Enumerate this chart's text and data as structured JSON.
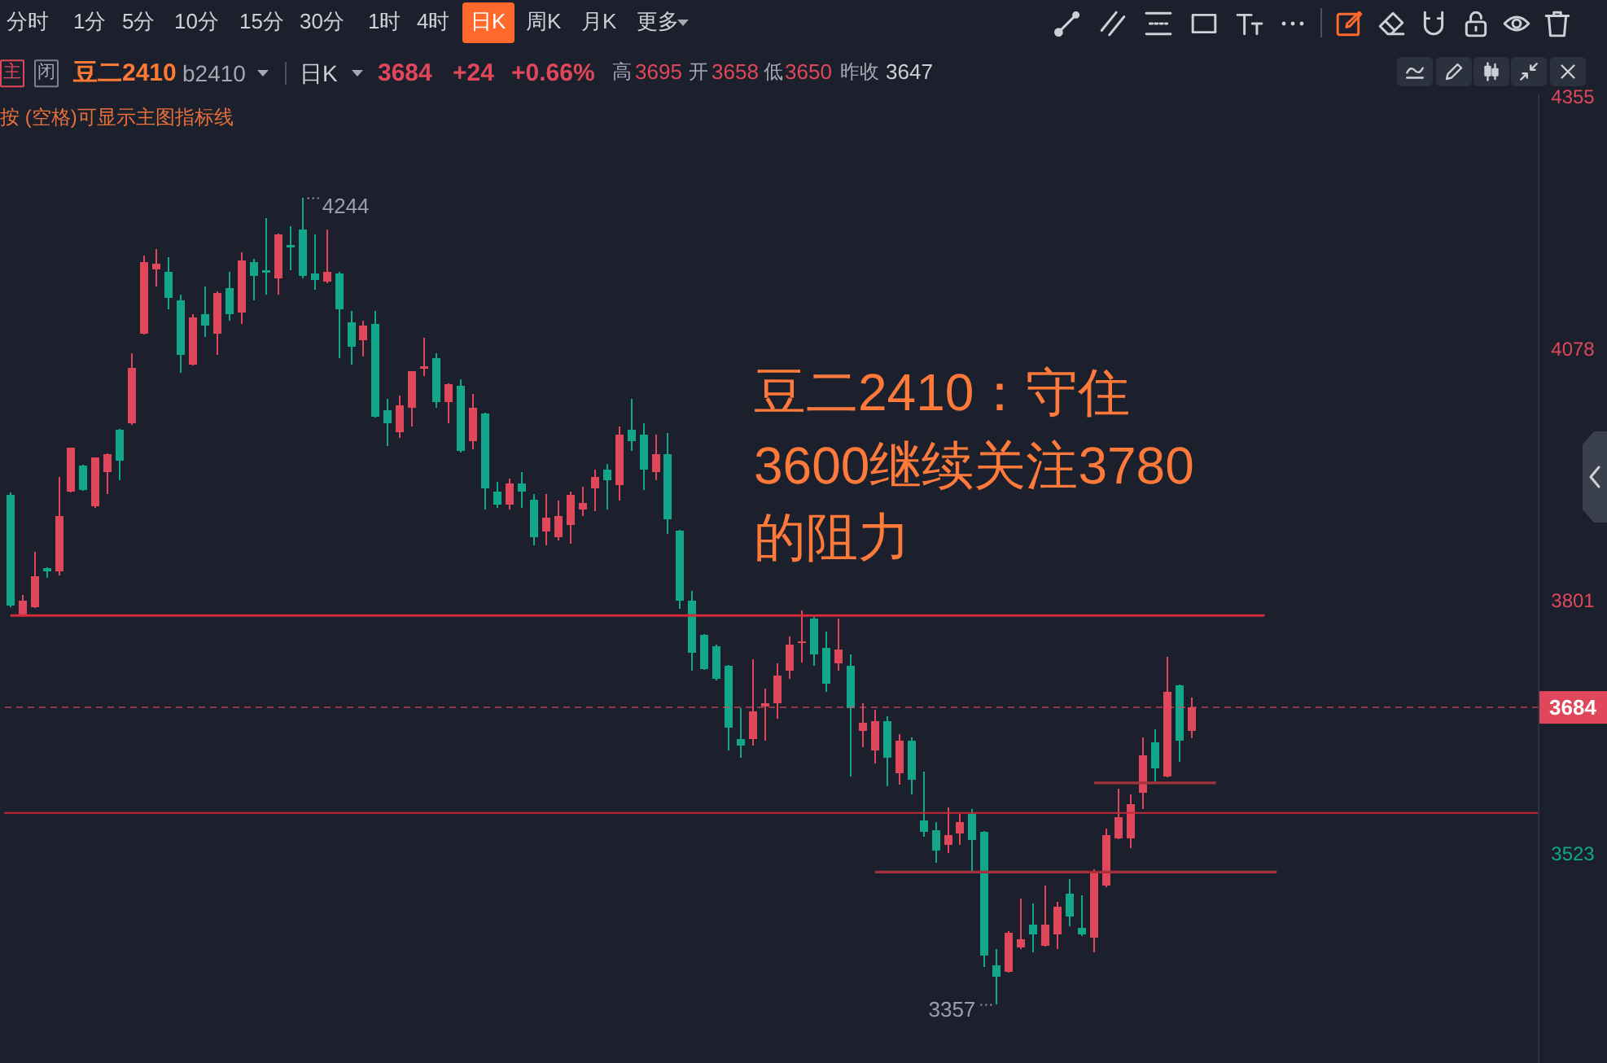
{
  "chart_data": {
    "type": "candlestick",
    "title": "豆二2410：守住3600继续关注3780的阻力",
    "categories": [
      null,
      null,
      null,
      null,
      null,
      null,
      null,
      null,
      null,
      null,
      null,
      null,
      null,
      null,
      null,
      null,
      null,
      null,
      null,
      null,
      null,
      null,
      null,
      null,
      null,
      null,
      null,
      null,
      null,
      null,
      null,
      null,
      null,
      null,
      null,
      null,
      null,
      null,
      null,
      null,
      null,
      null,
      null,
      null,
      null,
      null,
      null,
      null,
      null,
      null,
      null,
      null,
      null,
      null,
      null,
      null,
      null,
      null,
      null,
      null,
      null,
      null,
      null,
      null,
      null,
      null,
      null,
      null,
      null,
      null,
      null,
      null,
      null,
      null,
      null,
      null,
      null,
      null,
      null,
      null,
      null,
      null,
      null,
      null,
      null,
      null,
      null,
      null,
      null,
      null,
      null,
      null,
      null,
      null,
      null,
      null,
      null,
      null,
      null,
      null,
      null,
      null,
      null,
      null,
      null,
      null,
      null,
      null,
      null,
      null,
      null,
      null,
      null,
      null,
      null,
      null,
      null,
      null,
      null,
      null,
      null,
      null,
      null,
      null,
      null,
      null
    ],
    "ohlc": [
      [
        3918,
        3920,
        3794,
        3796
      ],
      [
        3786,
        3808,
        3783,
        3801
      ],
      [
        3794,
        3855,
        3793,
        3828
      ],
      [
        3837,
        3838,
        3826,
        3834
      ],
      [
        3834,
        3937,
        3829,
        3894
      ],
      [
        3921,
        3970,
        3920,
        3970
      ],
      [
        3950,
        3951,
        3922,
        3923
      ],
      [
        3905,
        3959,
        3903,
        3959
      ],
      [
        3943,
        3963,
        3919,
        3962
      ],
      [
        3989,
        3990,
        3934,
        3955
      ],
      [
        3996,
        4073,
        3995,
        4057
      ],
      [
        4095,
        4181,
        4094,
        4174
      ],
      [
        4166,
        4188,
        4147,
        4172
      ],
      [
        4163,
        4179,
        4122,
        4134
      ],
      [
        4132,
        4138,
        4052,
        4072
      ],
      [
        4061,
        4116,
        4060,
        4113
      ],
      [
        4116,
        4147,
        4091,
        4104
      ],
      [
        4095,
        4141,
        4072,
        4140
      ],
      [
        4145,
        4163,
        4109,
        4116
      ],
      [
        4118,
        4184,
        4106,
        4175
      ],
      [
        4174,
        4177,
        4132,
        4158
      ],
      [
        4165,
        4222,
        4138,
        4162
      ],
      [
        4156,
        4205,
        4138,
        4204
      ],
      [
        4192,
        4213,
        4165,
        4190
      ],
      [
        4209,
        4244,
        4156,
        4158
      ],
      [
        4161,
        4204,
        4143,
        4154
      ],
      [
        4152,
        4209,
        4150,
        4163
      ],
      [
        4161,
        4163,
        4068,
        4122
      ],
      [
        4107,
        4120,
        4061,
        4081
      ],
      [
        4088,
        4109,
        4070,
        4104
      ],
      [
        4106,
        4120,
        4003,
        4004
      ],
      [
        4011,
        4023,
        3971,
        3996
      ],
      [
        3987,
        4027,
        3980,
        4016
      ],
      [
        4013,
        4054,
        3993,
        4054
      ],
      [
        4056,
        4090,
        4048,
        4059
      ],
      [
        4068,
        4073,
        4013,
        4020
      ],
      [
        4020,
        4040,
        3996,
        4039
      ],
      [
        4038,
        4045,
        3964,
        3966
      ],
      [
        3977,
        4029,
        3968,
        4013
      ],
      [
        4007,
        4008,
        3902,
        3925
      ],
      [
        3921,
        3932,
        3903,
        3907
      ],
      [
        3907,
        3936,
        3902,
        3930
      ],
      [
        3930,
        3943,
        3903,
        3921
      ],
      [
        3912,
        3919,
        3862,
        3871
      ],
      [
        3877,
        3919,
        3862,
        3893
      ],
      [
        3871,
        3911,
        3868,
        3894
      ],
      [
        3885,
        3921,
        3864,
        3918
      ],
      [
        3902,
        3927,
        3894,
        3909
      ],
      [
        3925,
        3945,
        3900,
        3937
      ],
      [
        3945,
        3952,
        3902,
        3934
      ],
      [
        3928,
        3993,
        3911,
        3984
      ],
      [
        3989,
        4023,
        3966,
        3977
      ],
      [
        3984,
        3996,
        3923,
        3945
      ],
      [
        3943,
        3984,
        3934,
        3962
      ],
      [
        3962,
        3986,
        3875,
        3891
      ],
      [
        3878,
        3879,
        3792,
        3801
      ],
      [
        3801,
        3812,
        3724,
        3744
      ],
      [
        3764,
        3765,
        3725,
        3726
      ],
      [
        3751,
        3753,
        3714,
        3715
      ],
      [
        3730,
        3731,
        3637,
        3662
      ],
      [
        3649,
        3683,
        3629,
        3642
      ],
      [
        3649,
        3737,
        3642,
        3680
      ],
      [
        3685,
        3705,
        3647,
        3689
      ],
      [
        3689,
        3732,
        3672,
        3719
      ],
      [
        3724,
        3762,
        3715,
        3753
      ],
      [
        3755,
        3791,
        3733,
        3757
      ],
      [
        3782,
        3785,
        3730,
        3742
      ],
      [
        3749,
        3767,
        3701,
        3710
      ],
      [
        3732,
        3782,
        3724,
        3748
      ],
      [
        3730,
        3742,
        3608,
        3683
      ],
      [
        3658,
        3689,
        3640,
        3667
      ],
      [
        3637,
        3681,
        3622,
        3669
      ],
      [
        3669,
        3674,
        3597,
        3629
      ],
      [
        3612,
        3655,
        3599,
        3647
      ],
      [
        3647,
        3651,
        3588,
        3604
      ],
      [
        3560,
        3613,
        3542,
        3547
      ],
      [
        3549,
        3558,
        3513,
        3527
      ],
      [
        3533,
        3574,
        3524,
        3544
      ],
      [
        3545,
        3567,
        3533,
        3558
      ],
      [
        3567,
        3572,
        3504,
        3538
      ],
      [
        3547,
        3548,
        3399,
        3411
      ],
      [
        3400,
        3418,
        3357,
        3388
      ],
      [
        3393,
        3438,
        3392,
        3436
      ],
      [
        3420,
        3474,
        3418,
        3429
      ],
      [
        3445,
        3468,
        3415,
        3434
      ],
      [
        3422,
        3488,
        3421,
        3445
      ],
      [
        3434,
        3470,
        3418,
        3465
      ],
      [
        3479,
        3495,
        3443,
        3454
      ],
      [
        3442,
        3477,
        3433,
        3434
      ],
      [
        3431,
        3506,
        3415,
        3502
      ],
      [
        3488,
        3551,
        3486,
        3544
      ],
      [
        3540,
        3595,
        3539,
        3563
      ],
      [
        3540,
        3588,
        3529,
        3578
      ],
      [
        3590,
        3651,
        3572,
        3631
      ],
      [
        3646,
        3660,
        3601,
        3617
      ],
      [
        3608,
        3740,
        3607,
        3701
      ],
      [
        3708,
        3709,
        3624,
        3647
      ],
      [
        3658,
        3695,
        3650,
        3684
      ],
      null,
      null,
      null,
      null,
      null,
      null,
      null,
      null,
      null,
      null,
      null,
      null,
      null,
      null,
      null,
      null,
      null,
      null,
      null,
      null,
      null,
      null,
      null,
      null,
      null,
      null,
      null,
      null
    ],
    "colors": [
      "#12a68b",
      "#e0475a",
      "#e0475a",
      "#12a68b",
      "#e0475a",
      "#e0475a",
      "#12a68b",
      "#e0475a",
      "#e0475a",
      "#12a68b",
      "#e0475a",
      "#e0475a",
      "#e0475a",
      "#12a68b",
      "#12a68b",
      "#e0475a",
      "#12a68b",
      "#e0475a",
      "#12a68b",
      "#e0475a",
      "#12a68b",
      "#12a68b",
      "#e0475a",
      "#12a68b",
      "#12a68b",
      "#12a68b",
      "#e0475a",
      "#12a68b",
      "#12a68b",
      "#e0475a",
      "#12a68b",
      "#12a68b",
      "#e0475a",
      "#e0475a",
      "#e0475a",
      "#12a68b",
      "#e0475a",
      "#12a68b",
      "#e0475a",
      "#12a68b",
      "#12a68b",
      "#e0475a",
      "#12a68b",
      "#12a68b",
      "#e0475a",
      "#e0475a",
      "#e0475a",
      "#e0475a",
      "#e0475a",
      "#12a68b",
      "#e0475a",
      "#12a68b",
      "#12a68b",
      "#e0475a",
      "#12a68b",
      "#12a68b",
      "#12a68b",
      "#12a68b",
      "#12a68b",
      "#12a68b",
      "#12a68b",
      "#e0475a",
      "#e0475a",
      "#e0475a",
      "#e0475a",
      "#e0475a",
      "#12a68b",
      "#12a68b",
      "#e0475a",
      "#12a68b",
      "#e0475a",
      "#e0475a",
      "#12a68b",
      "#e0475a",
      "#12a68b",
      "#12a68b",
      "#12a68b",
      "#e0475a",
      "#e0475a",
      "#12a68b",
      "#12a68b",
      "#12a68b",
      "#e0475a",
      "#e0475a",
      "#12a68b",
      "#e0475a",
      "#e0475a",
      "#12a68b",
      "#12a68b",
      "#e0475a",
      "#e0475a",
      "#e0475a",
      "#e0475a",
      "#e0475a",
      "#12a68b",
      "#e0475a",
      "#12a68b",
      "#e0475a",
      null,
      null,
      null,
      null,
      null,
      null,
      null,
      null,
      null,
      null,
      null,
      null,
      null,
      null,
      null,
      null,
      null,
      null,
      null,
      null,
      null,
      null,
      null,
      null,
      null,
      null,
      null,
      null
    ],
    "series": [
      {
        "type": "line",
        "color": "#d62b3b",
        "values": [
          3785,
          3785,
          3785,
          3785,
          3785,
          3785,
          3785,
          3785,
          3785,
          3785,
          3785,
          3785,
          3785,
          3785,
          3785,
          3785,
          3785,
          3785,
          3785,
          3785,
          3785,
          3785,
          3785,
          3785,
          3785,
          3785,
          3785,
          3785,
          3785,
          3785,
          3785,
          3785,
          3785,
          3785,
          3785,
          3785,
          3785,
          3785,
          3785,
          3785,
          3785,
          3785,
          3785,
          3785,
          3785,
          3785,
          3785,
          3785,
          3785,
          3785,
          3785,
          3785,
          3785,
          3785,
          3785,
          3785,
          3785,
          3785,
          3785,
          3785,
          3785,
          3785,
          3785,
          3785,
          3785,
          3785,
          3785,
          3785,
          3785,
          3785,
          3785,
          3785,
          3785,
          3785,
          3785,
          3785,
          3785,
          3785,
          3785,
          3785,
          3785,
          3785,
          3785,
          3785,
          3785,
          3785,
          3785,
          3785,
          3785,
          3785,
          3785,
          3785,
          3785,
          3785,
          3785,
          3785,
          3785,
          3785,
          3785,
          3785,
          3785,
          3785,
          3785,
          3785,
          null,
          null,
          null,
          null,
          null,
          null,
          null,
          null,
          null,
          null,
          null,
          null,
          null,
          null,
          null,
          null,
          null,
          null,
          null,
          null,
          null,
          null
        ]
      },
      {
        "type": "line",
        "color": "#a8303c",
        "values": [
          null,
          null,
          null,
          null,
          null,
          null,
          null,
          null,
          null,
          null,
          null,
          null,
          null,
          null,
          null,
          null,
          null,
          null,
          null,
          null,
          null,
          null,
          null,
          null,
          null,
          null,
          null,
          null,
          null,
          null,
          null,
          null,
          null,
          null,
          null,
          null,
          null,
          null,
          null,
          null,
          null,
          null,
          null,
          null,
          null,
          null,
          null,
          null,
          null,
          null,
          null,
          null,
          null,
          null,
          null,
          null,
          null,
          null,
          null,
          null,
          null,
          null,
          null,
          null,
          null,
          null,
          null,
          null,
          null,
          null,
          null,
          null,
          null,
          null,
          null,
          null,
          null,
          null,
          null,
          null,
          null,
          null,
          null,
          null,
          null,
          null,
          null,
          null,
          null,
          3601,
          3601,
          3601,
          3601,
          3601,
          3601,
          3601,
          3601,
          3601,
          3601,
          3601,
          null,
          null,
          null,
          null,
          null,
          null,
          null,
          null,
          null,
          null,
          null,
          null,
          null,
          null,
          null,
          null,
          null,
          null,
          null,
          null,
          null,
          null,
          null,
          null,
          null,
          null
        ]
      },
      {
        "type": "line",
        "color": "#a8303c",
        "values": [
          null,
          null,
          null,
          null,
          null,
          null,
          null,
          null,
          null,
          null,
          null,
          null,
          null,
          null,
          null,
          null,
          null,
          null,
          null,
          null,
          null,
          null,
          null,
          null,
          null,
          null,
          null,
          null,
          null,
          null,
          null,
          null,
          null,
          null,
          null,
          null,
          null,
          null,
          null,
          null,
          null,
          null,
          null,
          null,
          null,
          null,
          null,
          null,
          null,
          null,
          null,
          null,
          null,
          null,
          null,
          null,
          null,
          null,
          null,
          null,
          null,
          null,
          null,
          null,
          null,
          null,
          null,
          null,
          null,
          null,
          null,
          3503,
          3503,
          3503,
          3503,
          3503,
          3503,
          3503,
          3503,
          3503,
          3503,
          3503,
          3503,
          3503,
          3503,
          3503,
          3503,
          3503,
          3503,
          3503,
          3503,
          3503,
          3503,
          3503,
          3503,
          3503,
          3503,
          3503,
          3503,
          3503,
          3503,
          3503,
          3503,
          3503,
          3503,
          null,
          null,
          null,
          null,
          null,
          null,
          null,
          null,
          null,
          null,
          null,
          null,
          null,
          null,
          null,
          null,
          null,
          null,
          null,
          null,
          null
        ]
      }
    ],
    "ylim": [
      3293,
      4358
    ],
    "yticks": [
      3523,
      3801,
      4078,
      4355
    ],
    "tick_labels": "y",
    "ref_lines": [
      {
        "axis": "y",
        "value": 3568,
        "label": null,
        "color": "#c8283a"
      },
      {
        "axis": "y",
        "value": 3684,
        "label": "3684",
        "color": "#e0475a",
        "line_style": "dashed"
      }
    ],
    "annotations": [
      "分时",
      "1分",
      "5分",
      "10分",
      "15分",
      "30分",
      "1时",
      "4时",
      "日K",
      "周K",
      "月K",
      "更多",
      "主",
      "闭",
      "豆二2410",
      "b2410",
      "日K",
      "3684",
      "+24",
      "+0.66%",
      "高",
      "3695",
      "开",
      "3658",
      "低",
      "3650",
      "昨收",
      "3647",
      "按 (空格)可显示主图指标线",
      "4244",
      "3357"
    ]
  }
}
